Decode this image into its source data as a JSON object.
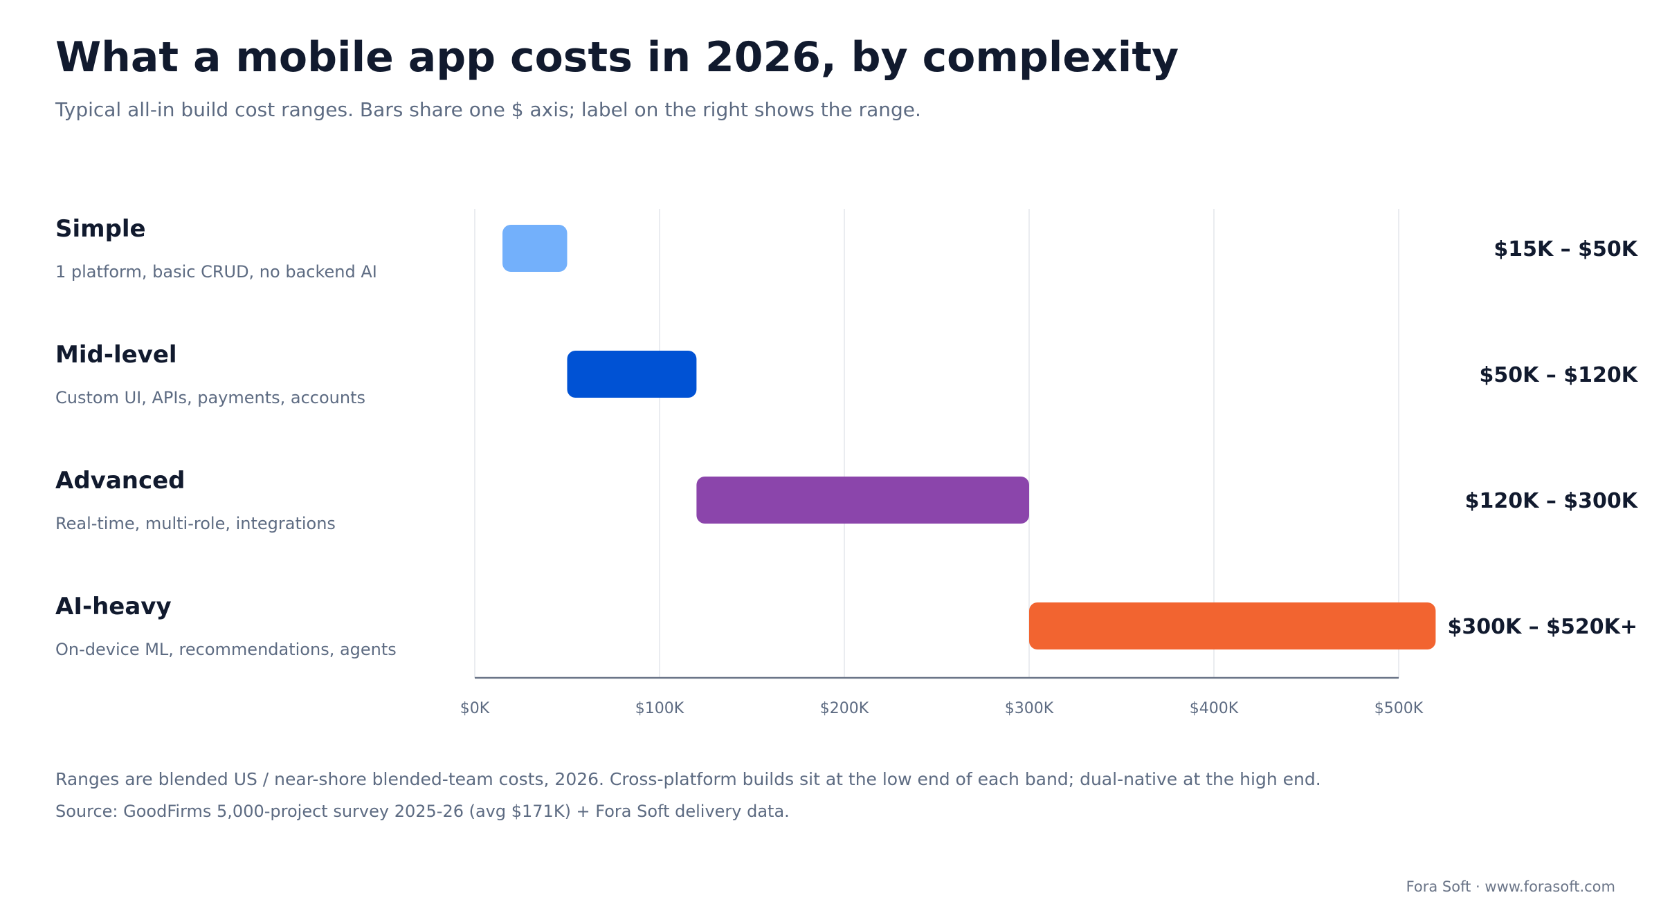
{
  "header": {
    "title": "What a mobile app costs in 2026, by complexity",
    "subtitle": "Typical all-in build cost ranges. Bars share one $ axis; label on the right shows the range."
  },
  "footer": {
    "note": "Ranges are blended US / near-shore blended-team costs, 2026. Cross-platform builds sit at the low end of each band; dual-native at the high end.",
    "source": "Source: GoodFirms 5,000-project survey 2025-26 (avg $171K) + Fora Soft delivery data.",
    "brand": "Fora Soft · www.forasoft.com"
  },
  "chart_data": {
    "type": "bar",
    "orientation": "horizontal-range",
    "title": "What a mobile app costs in 2026, by complexity",
    "subtitle": "Typical all-in build cost ranges. Bars share one $ axis; label on the right shows the range.",
    "xlabel": "",
    "ylabel": "",
    "xlim": [
      0,
      500
    ],
    "x_unit": "thousand USD",
    "x_ticks": [
      0,
      100,
      200,
      300,
      400,
      500
    ],
    "x_tick_labels": [
      "$0K",
      "$100K",
      "$200K",
      "$300K",
      "$400K",
      "$500K"
    ],
    "grid": true,
    "legend": "none",
    "rows": [
      {
        "category": "Simple",
        "description": "1 platform, basic CRUD, no backend AI",
        "low": 15,
        "high": 50,
        "range_label": "$15K – $50K",
        "color": "#73b0fb"
      },
      {
        "category": "Mid-level",
        "description": "Custom UI, APIs, payments, accounts",
        "low": 50,
        "high": 120,
        "range_label": "$50K – $120K",
        "color": "#0052d4"
      },
      {
        "category": "Advanced",
        "description": "Real-time, multi-role, integrations",
        "low": 120,
        "high": 300,
        "range_label": "$120K – $300K",
        "color": "#8b45ab"
      },
      {
        "category": "AI-heavy",
        "description": "On-device ML, recommendations, agents",
        "low": 300,
        "high": 520,
        "range_label": "$300K – $520K+",
        "color": "#f26430"
      }
    ]
  }
}
